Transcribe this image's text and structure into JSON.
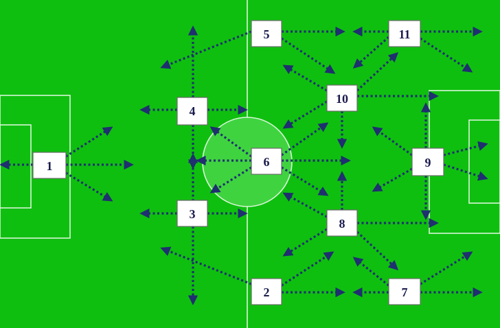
{
  "diagram": {
    "colors": {
      "field": "#0fbf0f",
      "lines": "#d8f5d8",
      "center_circle_fill": "#3fd43f",
      "arrows": "#1f2f6f",
      "box_fill": "#ffffff",
      "box_border": "#6a6a6a",
      "label": "#1a1a4d"
    },
    "players": [
      {
        "id": "p1",
        "label": "1"
      },
      {
        "id": "p2",
        "label": "2"
      },
      {
        "id": "p3",
        "label": "3"
      },
      {
        "id": "p4",
        "label": "4"
      },
      {
        "id": "p5",
        "label": "5"
      },
      {
        "id": "p6",
        "label": "6"
      },
      {
        "id": "p7",
        "label": "7"
      },
      {
        "id": "p8",
        "label": "8"
      },
      {
        "id": "p9",
        "label": "9"
      },
      {
        "id": "p10",
        "label": "10"
      },
      {
        "id": "p11",
        "label": "11"
      }
    ]
  }
}
